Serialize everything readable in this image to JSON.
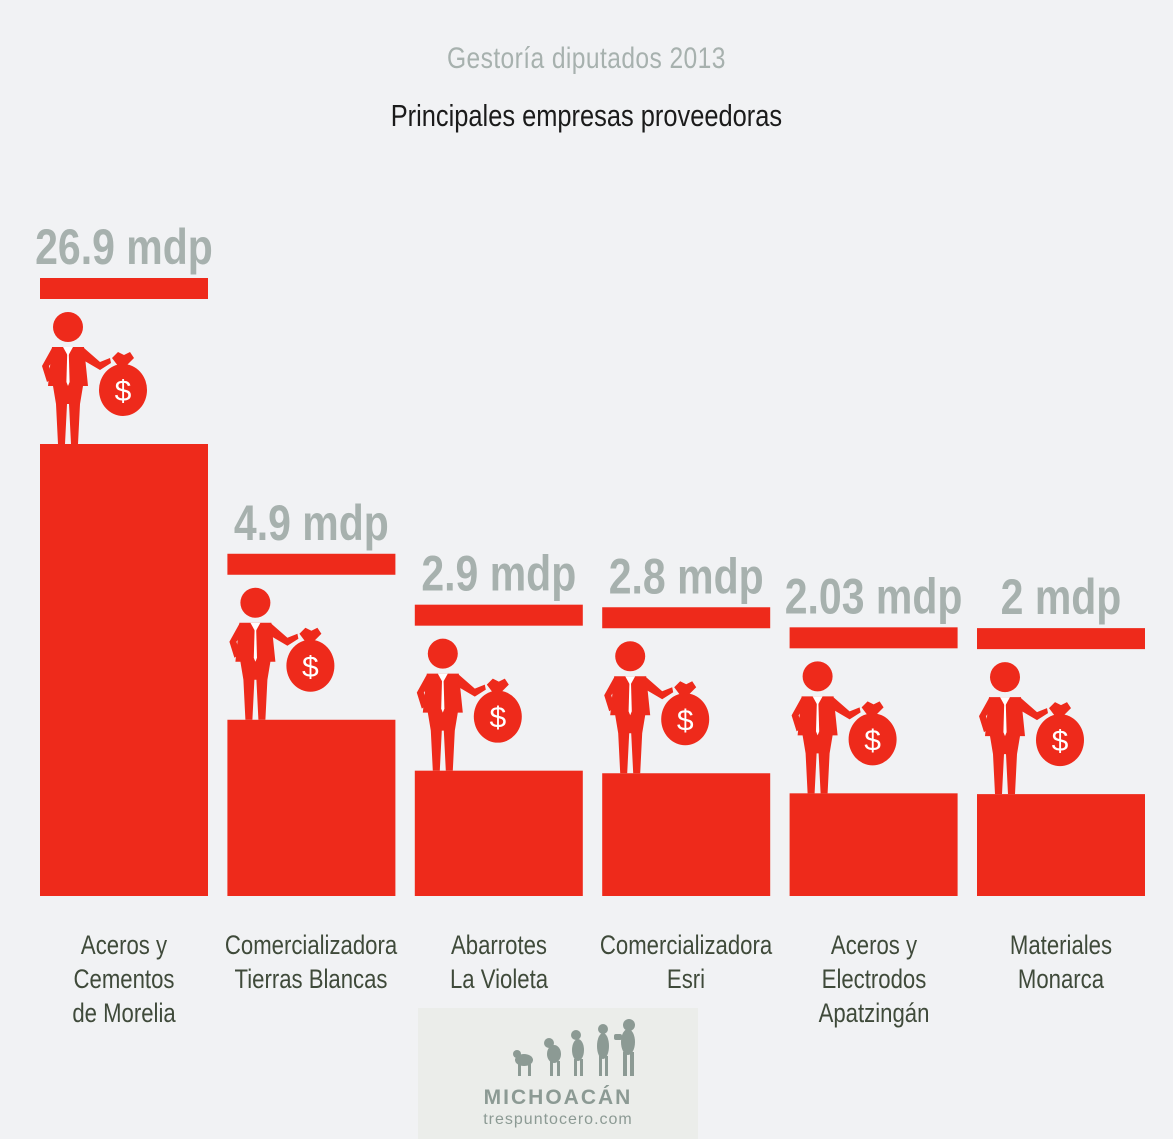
{
  "header": {
    "subtitle": "Gestoría diputados 2013",
    "title": "Principales empresas proveedoras"
  },
  "colors": {
    "bar": "#ee2a1b",
    "value_text": "#a7b1ae",
    "label_text": "#3f4a3a",
    "background": "#f1f2f4"
  },
  "chart_data": {
    "type": "bar",
    "title": "Principales empresas proveedoras",
    "subtitle": "Gestoría diputados 2013",
    "unit": "mdp",
    "categories": [
      [
        "Aceros y",
        "Cementos",
        "de Morelia"
      ],
      [
        "Comercializadora",
        "Tierras Blancas"
      ],
      [
        "Abarrotes",
        "La Violeta"
      ],
      [
        "Comercializadora",
        "Esri"
      ],
      [
        "Aceros y",
        "Electrodos",
        "Apatzingán"
      ],
      [
        "Materiales",
        "Monarca"
      ]
    ],
    "values": [
      26.9,
      4.9,
      2.9,
      2.8,
      2.03,
      2
    ],
    "value_labels": [
      "26.9 mdp",
      "4.9 mdp",
      "2.9 mdp",
      "2.8 mdp",
      "2.03 mdp",
      "2 mdp"
    ],
    "icon": "businessman-with-money-bag-icon"
  },
  "logo": {
    "name": "MICHOACÁN",
    "url": "trespuntocero.com"
  }
}
